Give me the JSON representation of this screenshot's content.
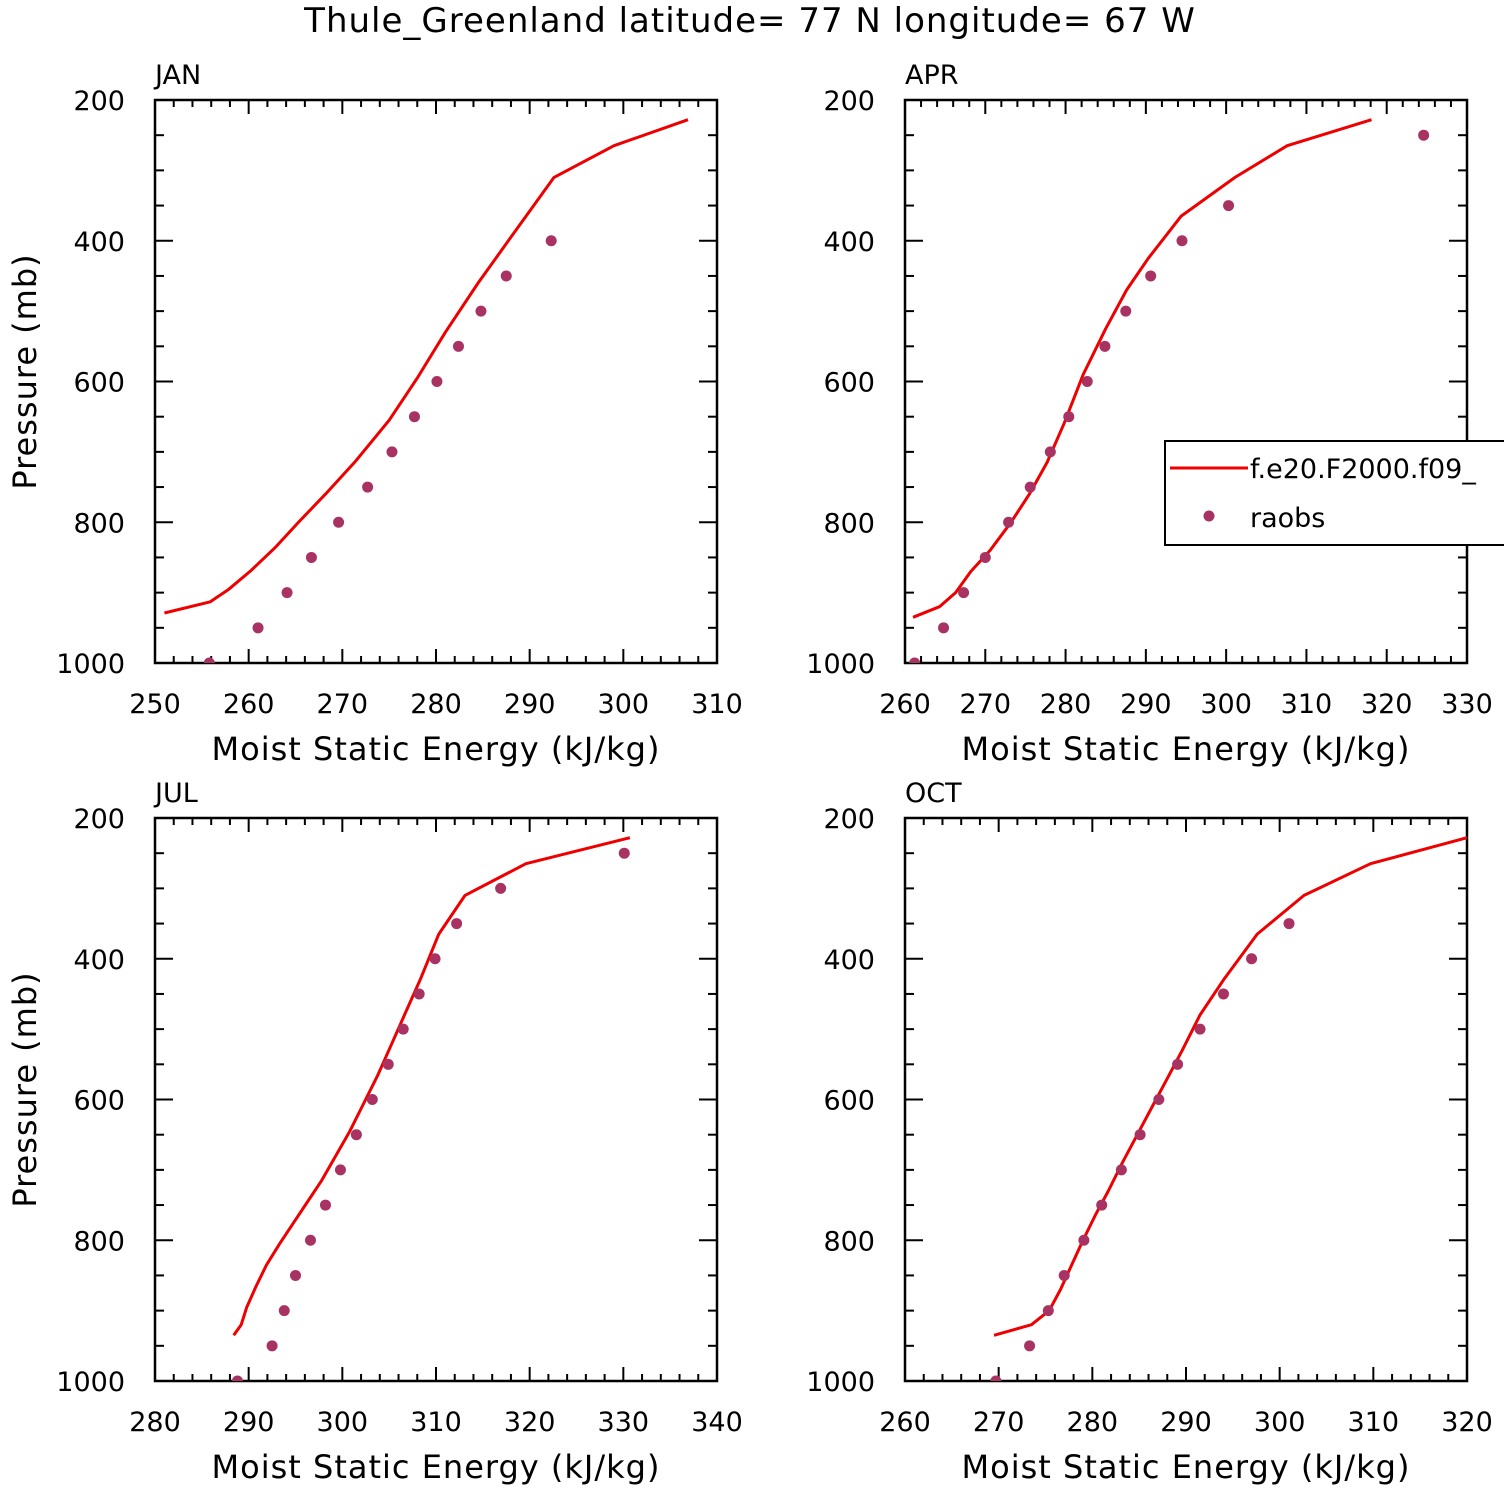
{
  "figure": {
    "title": "Thule_Greenland  latitude= 77 N longitude= 67 W"
  },
  "legend": {
    "model_label": "f.e20.F2000.f09_",
    "obs_label": "raobs"
  },
  "colors": {
    "model_line": "#ee0000",
    "obs_marker": "#a83262",
    "axes": "#000000"
  },
  "chart_data": [
    {
      "type": "line",
      "label": "JAN",
      "xlabel": "Moist Static Energy (kJ/kg)",
      "ylabel": "Pressure (mb)",
      "xlim": [
        250,
        310
      ],
      "ylim": [
        1000,
        200
      ],
      "xticks": [
        250,
        260,
        270,
        280,
        290,
        300,
        310
      ],
      "yticks": [
        200,
        400,
        600,
        800,
        1000
      ],
      "model": {
        "x": [
          251.0,
          255.9,
          257.8,
          260.3,
          262.9,
          265.4,
          268.2,
          271.3,
          275.0,
          278.0,
          281.0,
          284.5,
          288.8,
          292.6,
          299.0,
          306.9
        ],
        "y": [
          929,
          913,
          896,
          868,
          835,
          799,
          760,
          715,
          655,
          595,
          530,
          460,
          380,
          310,
          265,
          228
        ]
      },
      "obs": {
        "x": [
          255.8,
          261.0,
          264.1,
          266.7,
          269.6,
          272.7,
          275.3,
          277.7,
          280.1,
          282.4,
          284.8,
          287.5,
          292.3
        ],
        "y": [
          1000,
          950,
          900,
          850,
          800,
          750,
          700,
          650,
          600,
          550,
          500,
          450,
          400
        ]
      }
    },
    {
      "type": "line",
      "label": "APR",
      "xlabel": "Moist Static Energy (kJ/kg)",
      "ylabel": "",
      "xlim": [
        260,
        330
      ],
      "ylim": [
        1000,
        200
      ],
      "xticks": [
        260,
        270,
        280,
        290,
        300,
        310,
        320,
        330
      ],
      "yticks": [
        200,
        400,
        600,
        800,
        1000
      ],
      "show_legend": true,
      "model": {
        "x": [
          261.0,
          264.3,
          266.3,
          268.2,
          270.6,
          273.2,
          275.5,
          277.7,
          279.8,
          282.2,
          285.0,
          287.6,
          290.3,
          294.4,
          301.1,
          307.6,
          318.1
        ],
        "y": [
          935,
          920,
          900,
          870,
          840,
          800,
          760,
          715,
          660,
          590,
          525,
          470,
          425,
          365,
          310,
          265,
          228
        ]
      },
      "obs": {
        "x": [
          261.2,
          264.8,
          267.3,
          270.0,
          272.9,
          275.6,
          278.1,
          280.4,
          282.7,
          284.9,
          287.5,
          290.6,
          294.5,
          300.3,
          324.6
        ],
        "y": [
          1000,
          950,
          900,
          850,
          800,
          750,
          700,
          650,
          600,
          550,
          500,
          450,
          400,
          350,
          250
        ]
      }
    },
    {
      "type": "line",
      "label": "JUL",
      "xlabel": "Moist Static Energy (kJ/kg)",
      "ylabel": "Pressure (mb)",
      "xlim": [
        280,
        340
      ],
      "ylim": [
        1000,
        200
      ],
      "xticks": [
        280,
        290,
        300,
        310,
        320,
        330,
        340
      ],
      "yticks": [
        200,
        400,
        600,
        800,
        1000
      ],
      "model": {
        "x": [
          288.4,
          289.2,
          289.8,
          290.8,
          291.9,
          293.3,
          294.8,
          296.3,
          297.8,
          299.3,
          300.8,
          302.3,
          303.8,
          305.3,
          306.8,
          308.3,
          310.3,
          313.1,
          319.6,
          330.7
        ],
        "y": [
          935,
          920,
          895,
          865,
          835,
          805,
          775,
          745,
          715,
          680,
          645,
          605,
          565,
          520,
          475,
          430,
          365,
          310,
          265,
          228
        ]
      },
      "obs": {
        "x": [
          288.8,
          292.5,
          293.8,
          295.0,
          296.6,
          298.2,
          299.8,
          301.5,
          303.2,
          304.9,
          306.5,
          308.2,
          309.9,
          312.2,
          316.9,
          330.1
        ],
        "y": [
          1000,
          950,
          900,
          850,
          800,
          750,
          700,
          650,
          600,
          550,
          500,
          450,
          400,
          350,
          300,
          250
        ]
      }
    },
    {
      "type": "line",
      "label": "OCT",
      "xlabel": "Moist Static Energy (kJ/kg)",
      "ylabel": "",
      "xlim": [
        260,
        320
      ],
      "ylim": [
        1000,
        200
      ],
      "xticks": [
        260,
        270,
        280,
        290,
        300,
        310,
        320
      ],
      "yticks": [
        200,
        400,
        600,
        800,
        1000
      ],
      "model": {
        "x": [
          269.5,
          273.5,
          275.4,
          276.6,
          277.8,
          279.0,
          280.3,
          281.7,
          283.2,
          284.8,
          286.4,
          288.0,
          289.6,
          291.5,
          294.0,
          297.6,
          302.6,
          309.7,
          320.0
        ],
        "y": [
          935,
          920,
          900,
          870,
          835,
          800,
          765,
          730,
          690,
          650,
          610,
          570,
          530,
          480,
          430,
          365,
          310,
          265,
          228
        ]
      },
      "obs": {
        "x": [
          269.7,
          273.3,
          275.3,
          277.0,
          279.1,
          281.0,
          283.1,
          285.1,
          287.1,
          289.1,
          291.5,
          294.0,
          297.0,
          301.0
        ],
        "y": [
          1000,
          950,
          900,
          850,
          800,
          750,
          700,
          650,
          600,
          550,
          500,
          450,
          400,
          350
        ]
      }
    }
  ]
}
